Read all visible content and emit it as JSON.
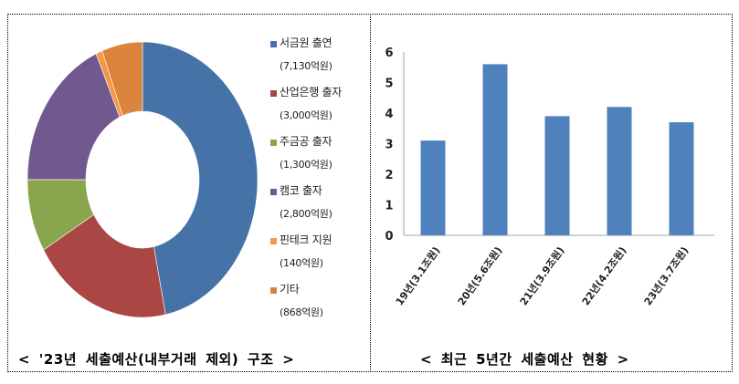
{
  "chart_data": [
    {
      "type": "pie",
      "subtype": "donut",
      "title": "< '23년 세출예산(내부거래 제외) 구조 >",
      "unit": "억원",
      "categories": [
        "서금원 출연",
        "산업은행 출자",
        "주금공 출자",
        "캠코 출자",
        "핀테크 지원",
        "기타"
      ],
      "values": [
        7130,
        3000,
        1300,
        2800,
        140,
        868
      ],
      "colors": [
        "#4572A7",
        "#AA4643",
        "#89A54E",
        "#71588F",
        "#F79646",
        "#DB843D"
      ],
      "legend_position": "right",
      "legend": [
        {
          "label": "서금원 출연",
          "value_text": "(7,130억원)",
          "color": "#4572A7"
        },
        {
          "label": "산업은행 출자",
          "value_text": "(3,000억원)",
          "color": "#AA4643"
        },
        {
          "label": "주금공 출자",
          "value_text": "(1,300억원)",
          "color": "#89A54E"
        },
        {
          "label": "캠코 출자",
          "value_text": "(2,800억원)",
          "color": "#71588F"
        },
        {
          "label": "핀테크 지원",
          "value_text": "(140억원)",
          "color": "#F79646"
        },
        {
          "label": "기타",
          "value_text": "(868억원)",
          "color": "#DB843D"
        }
      ]
    },
    {
      "type": "bar",
      "title": "< 최근 5년간 세출예산 현황 >",
      "categories": [
        "19년(3.1조원)",
        "20년(5.6조원)",
        "21년(3.9조원)",
        "22년(4.2조원)",
        "23년(3.7조원)"
      ],
      "values": [
        3.1,
        5.6,
        3.9,
        4.2,
        3.7
      ],
      "bar_color": "#4F81BD",
      "xlabel": "",
      "ylabel": "",
      "ylim": [
        0,
        6
      ],
      "yticks": [
        "0",
        "1",
        "2",
        "3",
        "4",
        "5",
        "6"
      ],
      "grid": false,
      "legend": false
    }
  ],
  "captions": {
    "left": "<  '23년  세출예산(내부거래  제외)  구조  >",
    "right": "<  최근  5년간  세출예산  현황  >"
  }
}
